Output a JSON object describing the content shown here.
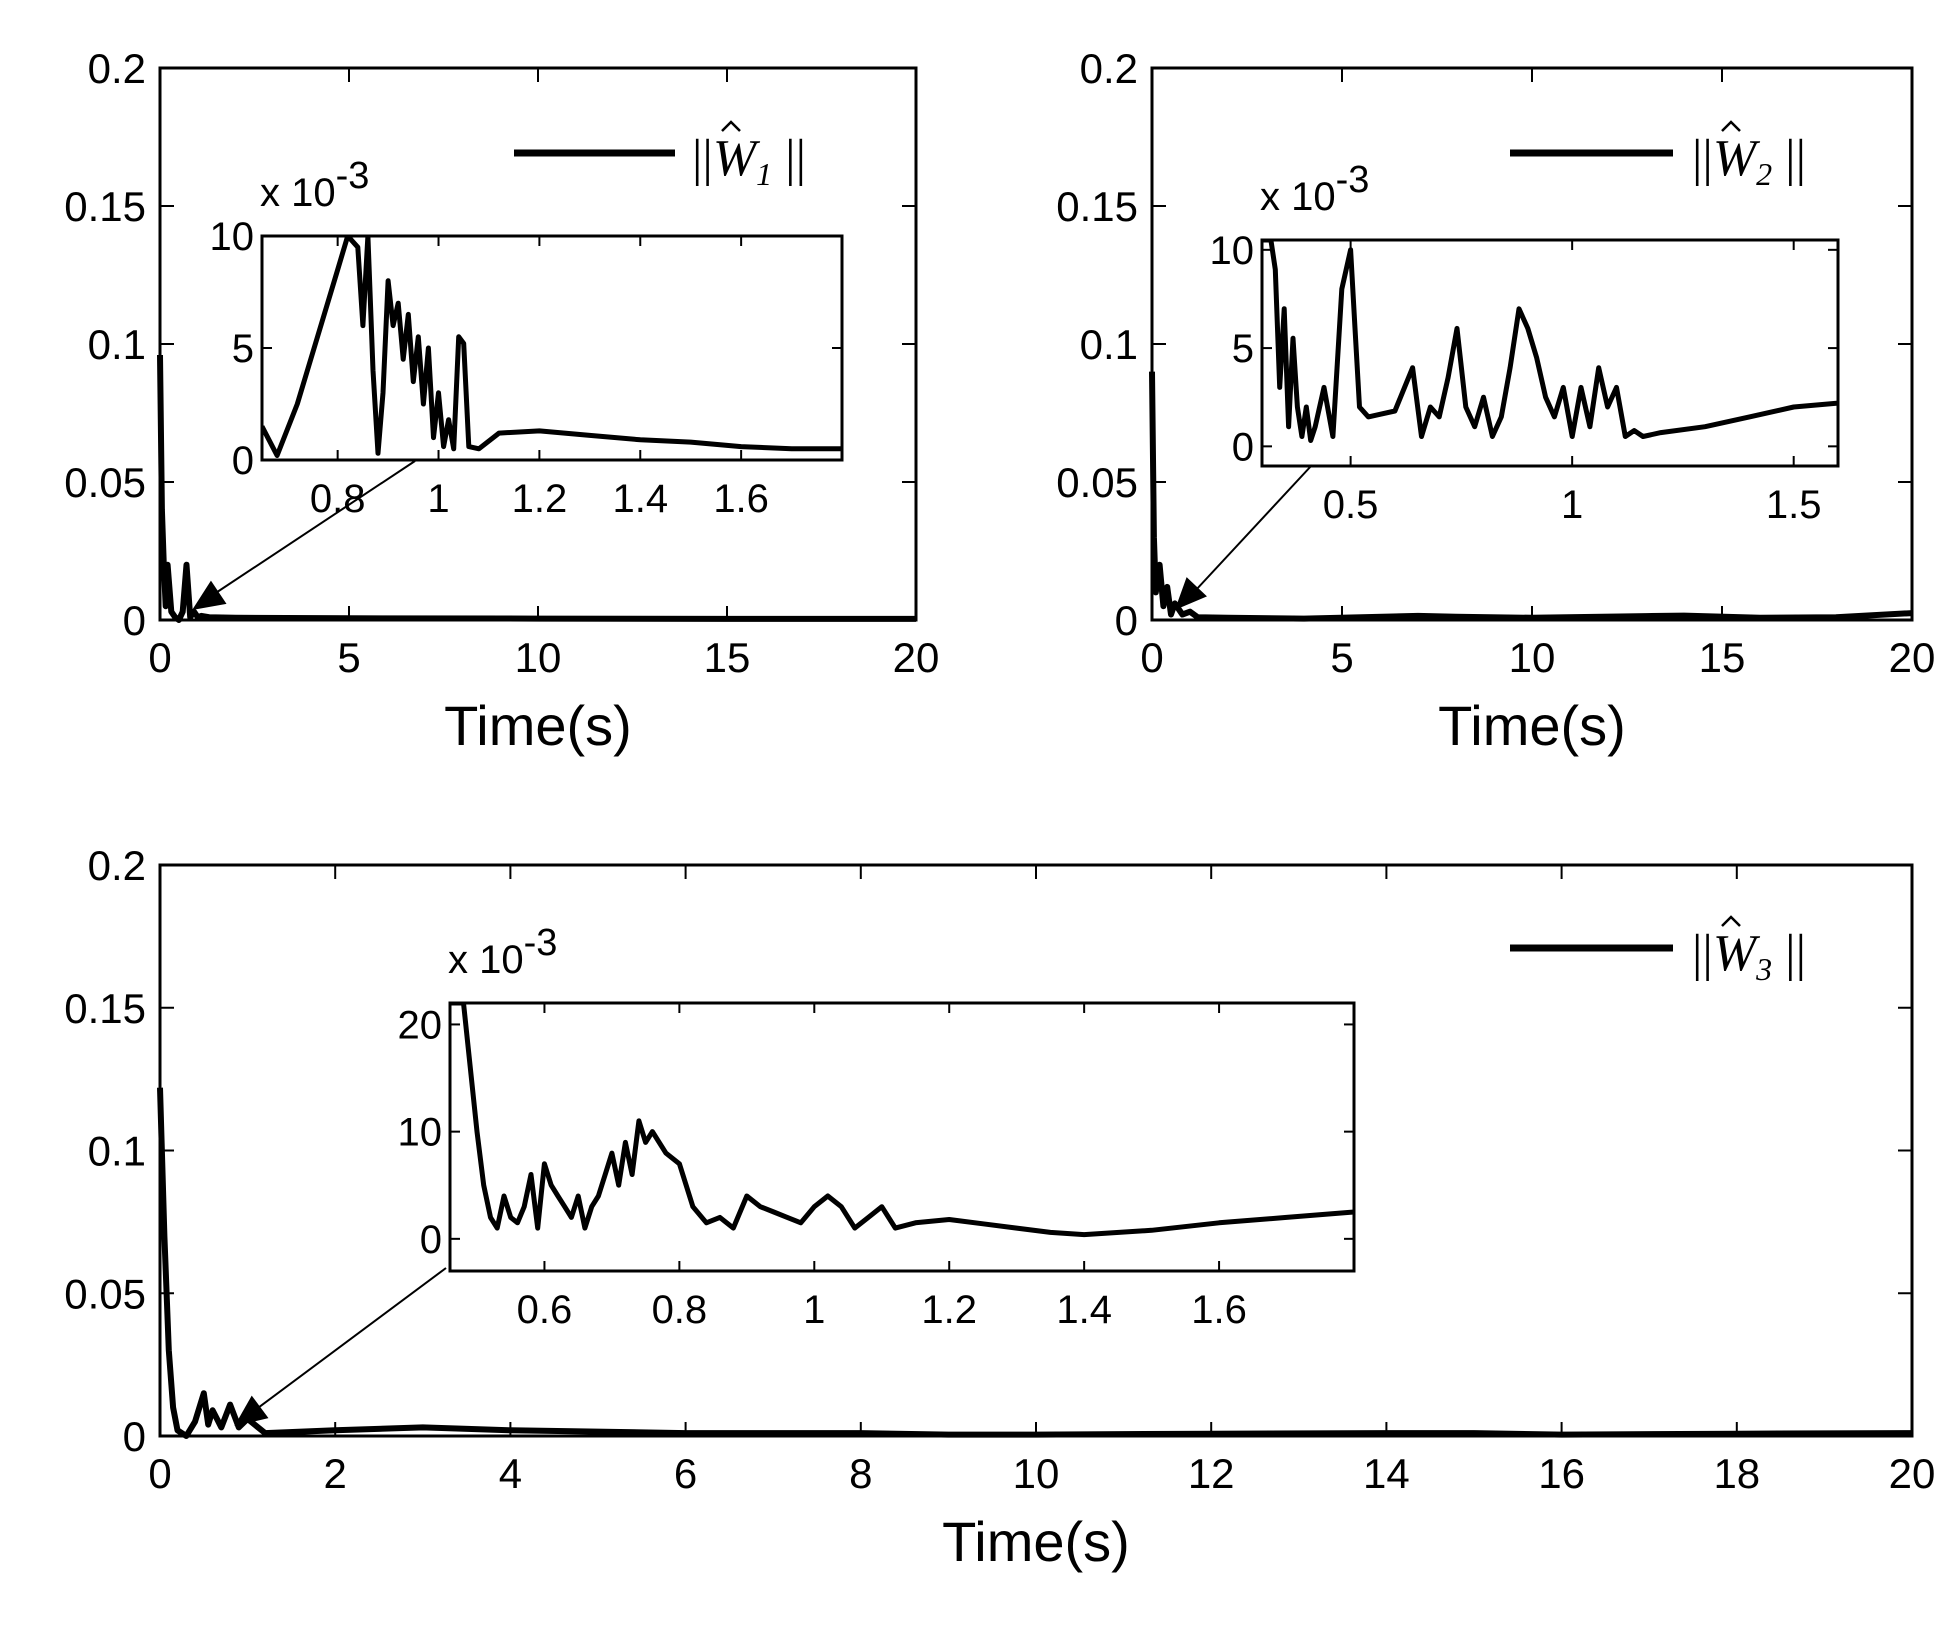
{
  "chart_data": [
    {
      "type": "line",
      "id": "w1",
      "xlabel": "Time(s)",
      "ylabel": "",
      "xlim": [
        0,
        20
      ],
      "ylim": [
        0,
        0.2
      ],
      "xticks": [
        "0",
        "5",
        "10",
        "15",
        "20"
      ],
      "yticks": [
        "0",
        "0.05",
        "0.1",
        "0.15",
        "0.2"
      ],
      "legend": {
        "label": "||Ŵ1||",
        "main": "W",
        "sub": "1",
        "position": "top-right"
      },
      "series": [
        {
          "name": "||Ŵ1||",
          "x": [
            0,
            0.05,
            0.1,
            0.15,
            0.2,
            0.3,
            0.4,
            0.5,
            0.6,
            0.7,
            0.8,
            0.9,
            1.0,
            1.1,
            1.3,
            2,
            5,
            10,
            15,
            20
          ],
          "y": [
            0.096,
            0.04,
            0.02,
            0.005,
            0.02,
            0.003,
            0.001,
            0.0,
            0.003,
            0.02,
            0.001,
            0.003,
            0.001,
            0.0015,
            0.001,
            0.0008,
            0.0006,
            0.0005,
            0.0004,
            0.0004
          ]
        }
      ],
      "inset": {
        "xlim": [
          0.65,
          1.8
        ],
        "ylim": [
          0,
          10
        ],
        "xticks": [
          "0.8",
          "1",
          "1.2",
          "1.4",
          "1.6"
        ],
        "yticks": [
          "0",
          "5",
          "10"
        ],
        "exponent_base": "x 10",
        "exponent_power": "-3",
        "series": {
          "x": [
            0.65,
            0.68,
            0.72,
            0.76,
            0.8,
            0.82,
            0.84,
            0.85,
            0.86,
            0.87,
            0.88,
            0.89,
            0.9,
            0.91,
            0.92,
            0.93,
            0.94,
            0.95,
            0.96,
            0.97,
            0.98,
            0.99,
            1.0,
            1.01,
            1.02,
            1.03,
            1.04,
            1.05,
            1.06,
            1.08,
            1.12,
            1.2,
            1.3,
            1.4,
            1.5,
            1.6,
            1.7,
            1.8
          ],
          "y": [
            1.5,
            0.2,
            2.5,
            5.5,
            8.5,
            10,
            9.5,
            6,
            10,
            4,
            0.3,
            3,
            8,
            6,
            7,
            4.5,
            6.5,
            3.5,
            5.5,
            2.5,
            5,
            1,
            3,
            0.6,
            1.8,
            0.5,
            5.5,
            5.2,
            0.6,
            0.5,
            1.2,
            1.3,
            1.1,
            0.9,
            0.8,
            0.6,
            0.5,
            0.5
          ]
        }
      },
      "annotation": {
        "x_data": 0.85,
        "y_data": 0.0
      }
    },
    {
      "type": "line",
      "id": "w2",
      "xlabel": "Time(s)",
      "ylabel": "",
      "xlim": [
        0,
        20
      ],
      "ylim": [
        0,
        0.2
      ],
      "xticks": [
        "0",
        "5",
        "10",
        "15",
        "20"
      ],
      "yticks": [
        "0",
        "0.05",
        "0.1",
        "0.15",
        "0.2"
      ],
      "legend": {
        "label": "||Ŵ2||",
        "main": "W",
        "sub": "2",
        "position": "top-right"
      },
      "series": [
        {
          "name": "||Ŵ2||",
          "x": [
            0,
            0.05,
            0.1,
            0.2,
            0.3,
            0.4,
            0.5,
            0.6,
            0.8,
            1.0,
            1.2,
            2,
            4,
            7,
            8,
            10,
            13,
            14,
            16,
            18,
            20
          ],
          "y": [
            0.09,
            0.03,
            0.01,
            0.02,
            0.005,
            0.012,
            0.002,
            0.006,
            0.002,
            0.003,
            0.001,
            0.0008,
            0.0005,
            0.0015,
            0.0012,
            0.0008,
            0.0014,
            0.0016,
            0.0008,
            0.001,
            0.0025
          ]
        }
      ],
      "inset": {
        "xlim": [
          0.3,
          1.6
        ],
        "ylim": [
          -1,
          10.5
        ],
        "xticks": [
          "0.5",
          "1",
          "1.5"
        ],
        "yticks": [
          "0",
          "5",
          "10"
        ],
        "exponent_base": "x 10",
        "exponent_power": "-3",
        "series": {
          "x": [
            0.3,
            0.32,
            0.33,
            0.34,
            0.35,
            0.36,
            0.37,
            0.38,
            0.39,
            0.4,
            0.41,
            0.42,
            0.44,
            0.46,
            0.48,
            0.5,
            0.51,
            0.52,
            0.54,
            0.56,
            0.6,
            0.64,
            0.66,
            0.68,
            0.7,
            0.72,
            0.74,
            0.76,
            0.78,
            0.8,
            0.82,
            0.84,
            0.86,
            0.88,
            0.9,
            0.92,
            0.94,
            0.96,
            0.98,
            1.0,
            1.02,
            1.04,
            1.06,
            1.08,
            1.1,
            1.12,
            1.14,
            1.16,
            1.2,
            1.3,
            1.4,
            1.5,
            1.6
          ],
          "y": [
            10.5,
            10.5,
            9,
            3,
            7,
            1,
            5.5,
            2,
            0.5,
            2,
            0.3,
            1,
            3,
            0.5,
            8,
            10,
            6,
            2,
            1.5,
            1.6,
            1.8,
            4,
            0.5,
            2,
            1.5,
            3.5,
            6,
            2,
            1,
            2.5,
            0.5,
            1.5,
            4,
            7,
            6,
            4.5,
            2.5,
            1.5,
            3,
            0.5,
            3,
            1,
            4,
            2,
            3,
            0.5,
            0.8,
            0.5,
            0.7,
            1.0,
            1.5,
            2.0,
            2.2
          ]
        }
      },
      "annotation": {
        "x_data": 0.6,
        "y_data": 0.0
      }
    },
    {
      "type": "line",
      "id": "w3",
      "xlabel": "Time(s)",
      "ylabel": "",
      "xlim": [
        0,
        20
      ],
      "ylim": [
        0,
        0.2
      ],
      "xticks": [
        "0",
        "2",
        "4",
        "6",
        "8",
        "10",
        "12",
        "14",
        "16",
        "18",
        "20"
      ],
      "yticks": [
        "0",
        "0.05",
        "0.1",
        "0.15",
        "0.2"
      ],
      "legend": {
        "label": "||Ŵ3||",
        "main": "W",
        "sub": "3",
        "position": "top-right"
      },
      "series": [
        {
          "name": "||Ŵ3||",
          "x": [
            0,
            0.05,
            0.1,
            0.15,
            0.2,
            0.3,
            0.4,
            0.5,
            0.55,
            0.6,
            0.7,
            0.8,
            0.9,
            1.0,
            1.2,
            2,
            3,
            4,
            6,
            8,
            9,
            10,
            12,
            14,
            15,
            16,
            18,
            20
          ],
          "y": [
            0.122,
            0.07,
            0.03,
            0.01,
            0.002,
            0.0,
            0.005,
            0.015,
            0.004,
            0.009,
            0.003,
            0.011,
            0.003,
            0.006,
            0.001,
            0.002,
            0.003,
            0.002,
            0.001,
            0.001,
            0.0005,
            0.0005,
            0.0008,
            0.001,
            0.001,
            0.0005,
            0.0008,
            0.001
          ]
        }
      ],
      "inset": {
        "xlim": [
          0.46,
          1.8
        ],
        "ylim": [
          -3,
          22
        ],
        "xticks": [
          "0.6",
          "0.8",
          "1",
          "1.2",
          "1.4",
          "1.6"
        ],
        "yticks": [
          "0",
          "10",
          "20"
        ],
        "exponent_base": "x 10",
        "exponent_power": "-3",
        "series": {
          "x": [
            0.46,
            0.48,
            0.5,
            0.51,
            0.52,
            0.53,
            0.54,
            0.55,
            0.56,
            0.57,
            0.58,
            0.59,
            0.6,
            0.61,
            0.62,
            0.63,
            0.64,
            0.65,
            0.66,
            0.67,
            0.68,
            0.69,
            0.7,
            0.71,
            0.72,
            0.73,
            0.74,
            0.75,
            0.76,
            0.78,
            0.8,
            0.82,
            0.84,
            0.86,
            0.88,
            0.9,
            0.92,
            0.94,
            0.96,
            0.98,
            1.0,
            1.02,
            1.04,
            1.06,
            1.08,
            1.1,
            1.12,
            1.15,
            1.2,
            1.25,
            1.3,
            1.35,
            1.4,
            1.5,
            1.6,
            1.7,
            1.8
          ],
          "y": [
            22,
            22,
            10,
            5,
            2,
            1,
            4,
            2,
            1.5,
            3,
            6,
            1,
            7,
            5,
            4,
            3,
            2,
            4,
            1,
            3,
            4,
            6,
            8,
            5,
            9,
            6,
            11,
            9,
            10,
            8,
            7,
            3,
            1.5,
            2,
            1,
            4,
            3,
            2.5,
            2,
            1.5,
            3,
            4,
            3,
            1,
            2,
            3,
            1,
            1.5,
            1.8,
            1.4,
            1,
            0.6,
            0.4,
            0.8,
            1.5,
            2,
            2.5
          ]
        }
      },
      "annotation": {
        "x_data": 0.85,
        "y_data": 0.0
      }
    }
  ]
}
